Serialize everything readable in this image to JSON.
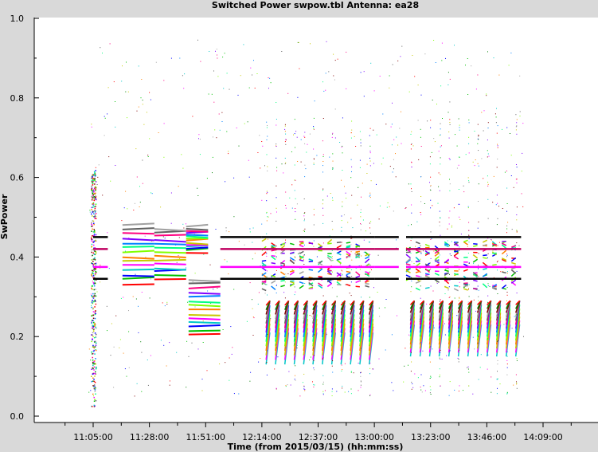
{
  "chart_data": {
    "type": "scatter",
    "title": "Switched Power  swpow.tbl   Antenna: ea28",
    "xlabel": "Time (from 2015/03/15) (hh:mm:ss)",
    "ylabel": "SwPower",
    "ylim": [
      0.0,
      1.0
    ],
    "y_ticks": [
      "0.0",
      "0.2",
      "0.4",
      "0.6",
      "0.8",
      "1.0"
    ],
    "x_ticks": [
      "11:05:00",
      "11:28:00",
      "11:51:00",
      "12:14:00",
      "12:37:00",
      "13:00:00",
      "13:23:00",
      "13:46:00",
      "14:09:00"
    ],
    "xlim_minutes": [
      654,
      860
    ],
    "grid": false,
    "background": "#ffffff",
    "series_colors": [
      "#ff0000",
      "#00c000",
      "#0000ff",
      "#00c8c8",
      "#ff00ff",
      "#c8c800",
      "#ff8000",
      "#80ff00",
      "#00ff80",
      "#0080ff",
      "#8000ff",
      "#ff0080",
      "#606060",
      "#a0a0a0",
      "#800000",
      "#008000"
    ],
    "reference_lines": [
      {
        "value": 0.45,
        "color": "#000000"
      },
      {
        "value": 0.42,
        "color": "#c00060"
      },
      {
        "value": 0.375,
        "color": "#ff00ff"
      },
      {
        "value": 0.345,
        "color": "#000000"
      }
    ],
    "segments": [
      {
        "start": "11:04:00",
        "end": "11:06:00",
        "y_min": 0.02,
        "y_max": 0.62,
        "kind": "spike"
      },
      {
        "start": "11:05:00",
        "end": "11:11:00",
        "y_min": 0.34,
        "y_max": 0.45,
        "kind": "reference"
      },
      {
        "start": "11:17:00",
        "end": "11:30:00",
        "y_min": 0.33,
        "y_max": 0.49,
        "kind": "band"
      },
      {
        "start": "11:30:00",
        "end": "11:43:00",
        "y_min": 0.34,
        "y_max": 0.48,
        "kind": "band"
      },
      {
        "start": "11:43:00",
        "end": "11:52:00",
        "y_min": 0.41,
        "y_max": 0.48,
        "kind": "band"
      },
      {
        "start": "11:44:00",
        "end": "11:57:00",
        "y_min": 0.2,
        "y_max": 0.35,
        "kind": "band"
      },
      {
        "start": "11:57:00",
        "end": "12:14:00",
        "y_min": 0.34,
        "y_max": 0.45,
        "kind": "reference"
      },
      {
        "start": "12:14:00",
        "end": "13:00:00",
        "y_min": 0.13,
        "y_max": 0.45,
        "kind": "cycles"
      },
      {
        "start": "13:00:00",
        "end": "13:10:00",
        "y_min": 0.34,
        "y_max": 0.45,
        "kind": "reference"
      },
      {
        "start": "13:13:00",
        "end": "14:00:00",
        "y_min": 0.15,
        "y_max": 0.44,
        "kind": "cycles"
      }
    ]
  }
}
